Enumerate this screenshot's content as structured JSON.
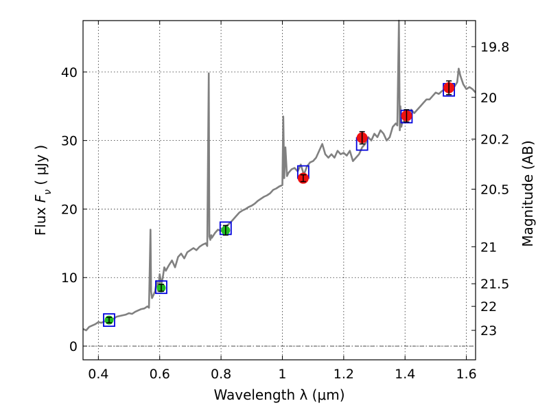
{
  "chart_data": {
    "type": "line",
    "xlabel": "Wavelength  λ (μm)",
    "ylabel": "Flux  F_ν  ( μJy )",
    "ylabel_right": "Magnitude (AB)",
    "xlim": [
      0.35,
      1.63
    ],
    "ylim": [
      -2,
      47.5
    ],
    "x_ticks": [
      0.4,
      0.6,
      0.8,
      1.0,
      1.2,
      1.4,
      1.6
    ],
    "x_tick_labels": [
      "0.4",
      "0.6",
      "0.8",
      "1",
      "1.2",
      "1.4",
      "1.6"
    ],
    "y_ticks": [
      0,
      10,
      20,
      30,
      40
    ],
    "y_tick_labels": [
      "0",
      "10",
      "20",
      "30",
      "40"
    ],
    "right_ticks": [
      {
        "label": "19.8",
        "flux": 43.7
      },
      {
        "label": "20",
        "flux": 36.3
      },
      {
        "label": "20.2",
        "flux": 30.2
      },
      {
        "label": "20.5",
        "flux": 22.9
      },
      {
        "label": "21",
        "flux": 14.5
      },
      {
        "label": "21.5",
        "flux": 9.1
      },
      {
        "label": "22",
        "flux": 5.8
      },
      {
        "label": "23",
        "flux": 2.3
      }
    ],
    "grid": true,
    "dash_dot_line_y": 0,
    "colors": {
      "spectrum": "#808080",
      "model_box": "#0000dd",
      "optical_points": "#22bb22",
      "nir_points": "#ee1111",
      "errorbar": "#000000",
      "baseline": "#333333"
    },
    "series": [
      {
        "kind": "spectrum",
        "x": [
          0.35,
          0.36,
          0.37,
          0.38,
          0.39,
          0.4,
          0.41,
          0.42,
          0.43,
          0.44,
          0.45,
          0.46,
          0.47,
          0.48,
          0.49,
          0.5,
          0.51,
          0.52,
          0.53,
          0.54,
          0.55,
          0.56,
          0.565,
          0.57,
          0.572,
          0.575,
          0.58,
          0.585,
          0.59,
          0.595,
          0.6,
          0.605,
          0.61,
          0.615,
          0.62,
          0.63,
          0.64,
          0.65,
          0.66,
          0.67,
          0.68,
          0.69,
          0.7,
          0.71,
          0.72,
          0.73,
          0.74,
          0.75,
          0.755,
          0.76,
          0.762,
          0.765,
          0.768,
          0.77,
          0.78,
          0.79,
          0.8,
          0.81,
          0.82,
          0.83,
          0.84,
          0.85,
          0.86,
          0.87,
          0.88,
          0.89,
          0.9,
          0.91,
          0.92,
          0.93,
          0.94,
          0.95,
          0.96,
          0.97,
          0.98,
          0.99,
          1.0,
          1.003,
          1.006,
          1.01,
          1.015,
          1.02,
          1.03,
          1.04,
          1.05,
          1.06,
          1.07,
          1.08,
          1.09,
          1.1,
          1.11,
          1.12,
          1.13,
          1.14,
          1.15,
          1.16,
          1.17,
          1.18,
          1.19,
          1.2,
          1.21,
          1.22,
          1.23,
          1.24,
          1.25,
          1.26,
          1.27,
          1.28,
          1.29,
          1.3,
          1.31,
          1.32,
          1.33,
          1.34,
          1.35,
          1.36,
          1.37,
          1.375,
          1.38,
          1.383,
          1.385,
          1.388,
          1.39,
          1.4,
          1.41,
          1.42,
          1.43,
          1.44,
          1.45,
          1.46,
          1.47,
          1.48,
          1.49,
          1.5,
          1.51,
          1.52,
          1.53,
          1.54,
          1.55,
          1.56,
          1.57,
          1.575,
          1.58,
          1.59,
          1.6,
          1.61,
          1.62,
          1.63
        ],
        "values": [
          2.5,
          2.3,
          2.8,
          3.0,
          3.2,
          3.5,
          3.4,
          3.6,
          3.7,
          3.9,
          4.0,
          4.3,
          4.4,
          4.5,
          4.6,
          4.8,
          4.7,
          5.0,
          5.2,
          5.4,
          5.5,
          5.8,
          5.6,
          17.0,
          8.0,
          7.0,
          7.5,
          8.0,
          9.5,
          8.0,
          10.5,
          9.0,
          10.0,
          11.5,
          11.0,
          11.8,
          12.5,
          11.5,
          13.0,
          13.5,
          12.8,
          13.7,
          14.0,
          14.3,
          14.0,
          14.5,
          14.8,
          15.0,
          14.6,
          39.8,
          16.0,
          15.5,
          16.2,
          15.8,
          16.5,
          17.0,
          16.8,
          17.5,
          17.6,
          18.0,
          18.5,
          19.0,
          19.5,
          19.8,
          20.0,
          20.3,
          20.5,
          20.8,
          21.2,
          21.5,
          21.8,
          22.0,
          22.3,
          22.8,
          23.0,
          23.3,
          23.5,
          33.5,
          24.5,
          29.0,
          24.8,
          25.3,
          25.8,
          26.0,
          25.5,
          26.5,
          25.0,
          26.2,
          26.8,
          27.0,
          27.5,
          28.5,
          29.5,
          28.0,
          27.5,
          28.0,
          27.5,
          28.5,
          28.0,
          28.2,
          27.8,
          28.5,
          27.0,
          27.5,
          28.0,
          29.0,
          29.5,
          30.5,
          30.0,
          31.0,
          30.5,
          31.5,
          31.0,
          30.0,
          30.5,
          32.0,
          32.5,
          32.2,
          47.5,
          31.5,
          35.0,
          32.0,
          32.5,
          33.0,
          33.5,
          34.5,
          34.0,
          34.5,
          35.0,
          35.5,
          36.0,
          36.0,
          36.5,
          37.0,
          36.8,
          37.2,
          37.5,
          37.3,
          38.0,
          37.8,
          38.5,
          40.5,
          39.5,
          38.2,
          37.5,
          37.8,
          37.5,
          37.0
        ]
      },
      {
        "kind": "model",
        "name": "",
        "x": [
          0.435,
          0.605,
          0.815,
          1.068,
          1.26,
          1.405,
          1.543
        ],
        "values": [
          3.8,
          8.6,
          17.2,
          25.4,
          29.5,
          33.5,
          37.4
        ]
      },
      {
        "kind": "optical",
        "name": "",
        "x": [
          0.435,
          0.605,
          0.815
        ],
        "values": [
          3.8,
          8.5,
          16.9
        ],
        "errors": [
          0.4,
          0.5,
          0.7
        ]
      },
      {
        "kind": "nir",
        "name": "",
        "x": [
          1.068,
          1.26,
          1.405,
          1.543
        ],
        "values": [
          24.5,
          30.4,
          33.6,
          37.7
        ],
        "errors": [
          0.5,
          0.9,
          0.9,
          1.0
        ]
      }
    ]
  }
}
